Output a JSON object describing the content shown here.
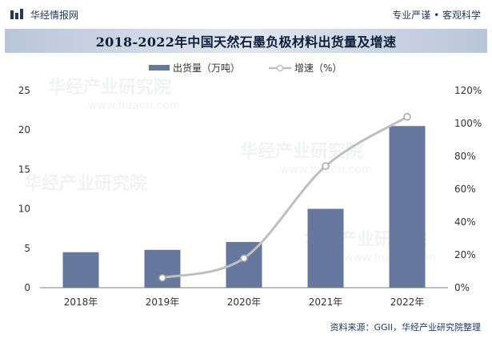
{
  "header": {
    "brand_name": "华经情报网",
    "slogan": "专业严谨 • 客观科学",
    "logo_icon": "bar-chart-logo-icon"
  },
  "title": "2018-2022年中国天然石墨负极材料出货量及增速",
  "source": "资料来源：GGII，华经产业研究院整理",
  "watermark": "华经产业研究院",
  "watermark_url": "www.huaon.com",
  "colors": {
    "bar": "#66789e",
    "line": "#bfbfbf",
    "marker_fill": "#ffffff",
    "header_text": "#1f3864"
  },
  "chart_data": {
    "type": "bar",
    "categories": [
      "2018年",
      "2019年",
      "2020年",
      "2021年",
      "2022年"
    ],
    "series": [
      {
        "name": "出货量（万吨）",
        "type": "bar",
        "axis": "left",
        "values": [
          4.5,
          4.8,
          5.8,
          10.0,
          20.5
        ]
      },
      {
        "name": "增速（%）",
        "type": "line",
        "axis": "right",
        "smooth": true,
        "values": [
          null,
          6,
          18,
          74,
          104
        ]
      }
    ],
    "y_left": {
      "min": 0,
      "max": 25,
      "ticks": [
        "0",
        "5",
        "10",
        "15",
        "20",
        "25"
      ]
    },
    "y_right": {
      "min": 0,
      "max": 120,
      "ticks": [
        "0%",
        "20%",
        "40%",
        "60%",
        "80%",
        "100%",
        "120%"
      ]
    },
    "legend": "top-center",
    "grid": false
  }
}
